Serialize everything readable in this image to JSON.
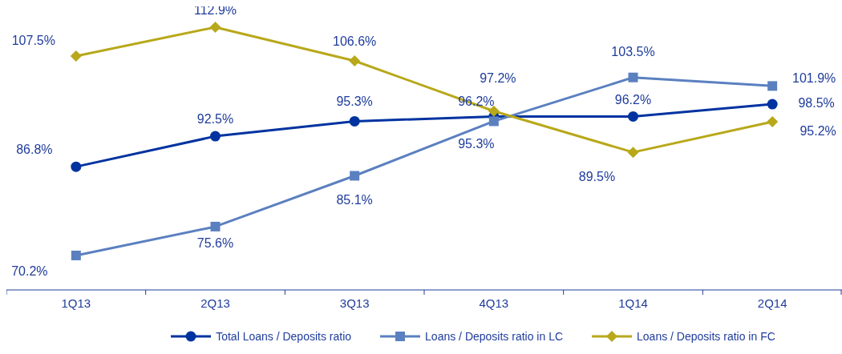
{
  "chart_data": {
    "type": "line",
    "categories": [
      "1Q13",
      "2Q13",
      "3Q13",
      "4Q13",
      "1Q14",
      "2Q14"
    ],
    "legend": "bottom",
    "series": [
      {
        "name": "Total Loans / Deposits ratio",
        "color": "#0033a0",
        "marker": "circle",
        "values": [
          86.8,
          92.5,
          95.3,
          96.2,
          96.2,
          98.5
        ],
        "value_labels": [
          "86.8%",
          "92.5%",
          "95.3%",
          "96.2%",
          "96.2%",
          "98.5%"
        ]
      },
      {
        "name": "Loans / Deposits ratio in LC",
        "color": "#5b80c0",
        "marker": "square",
        "values": [
          70.2,
          75.6,
          85.1,
          95.3,
          103.5,
          101.9
        ],
        "value_labels": [
          "70.2%",
          "75.6%",
          "85.1%",
          "95.3%",
          "103.5%",
          "101.9%"
        ]
      },
      {
        "name": "Loans / Deposits ratio in FC",
        "color": "#b8a81a",
        "marker": "diamond",
        "values": [
          107.5,
          112.9,
          106.6,
          97.2,
          89.5,
          95.2
        ],
        "value_labels": [
          "107.5%",
          "112.9%",
          "106.6%",
          "97.2%",
          "89.5%",
          "95.2%"
        ]
      }
    ]
  }
}
